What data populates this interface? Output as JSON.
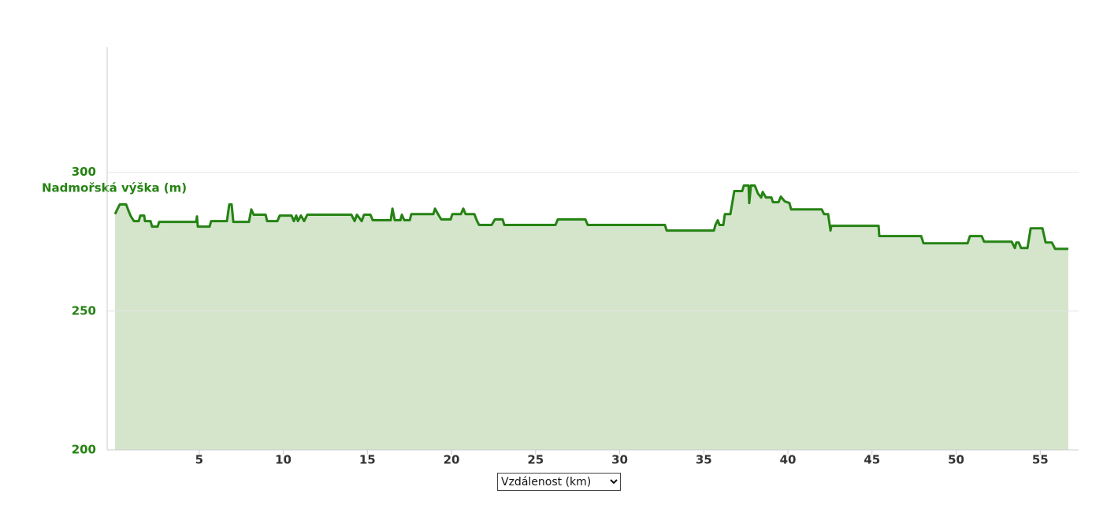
{
  "chart_data": {
    "type": "area",
    "y_label": "Nadmořská výška (m)",
    "x_label": "Vzdálenost (km)",
    "color": "#258313",
    "fill": "#d4e5cc",
    "xlim": [
      -0.47,
      57.28
    ],
    "ylim": [
      200,
      345
    ],
    "xticks": [
      5,
      10,
      15,
      20,
      25,
      30,
      35,
      40,
      45,
      50,
      55
    ],
    "yticks": [
      200,
      250,
      300
    ],
    "grid": true,
    "x": [
      0,
      0.09,
      0.28,
      0.66,
      0.8,
      0.94,
      1.12,
      1.41,
      1.5,
      1.73,
      1.78,
      2.11,
      2.2,
      2.53,
      2.62,
      4.82,
      4.87,
      4.92,
      5.62,
      5.71,
      6.65,
      6.79,
      6.93,
      7.03,
      7.96,
      8.1,
      8.24,
      8.95,
      9.04,
      9.65,
      9.79,
      10.49,
      10.63,
      10.77,
      10.87,
      11.05,
      11.24,
      11.43,
      14.05,
      14.24,
      14.38,
      14.66,
      14.8,
      15.18,
      15.32,
      16.39,
      16.49,
      16.63,
      16.96,
      17.05,
      17.19,
      17.52,
      17.61,
      18.92,
      19.02,
      19.2,
      19.39,
      19.95,
      20.05,
      20.56,
      20.7,
      20.84,
      21.36,
      21.5,
      21.64,
      22.39,
      22.58,
      23.04,
      23.14,
      26.18,
      26.32,
      27.96,
      28.1,
      32.69,
      32.79,
      35.6,
      35.69,
      35.83,
      35.93,
      36.16,
      36.25,
      36.58,
      36.81,
      37.28,
      37.38,
      37.66,
      37.7,
      37.8,
      38.03,
      38.22,
      38.41,
      38.5,
      38.69,
      39.02,
      39.11,
      39.44,
      39.58,
      39.81,
      40.09,
      40.19,
      42.01,
      42.15,
      42.39,
      42.53,
      42.58,
      45.39,
      45.43,
      47.92,
      48.06,
      50.68,
      50.82,
      51.52,
      51.66,
      53.3,
      53.49,
      53.58,
      53.72,
      53.86,
      54.24,
      54.43,
      55.13,
      55.32,
      55.69,
      55.88,
      56.67
    ],
    "values": [
      284.9,
      286.1,
      288.4,
      288.4,
      286.1,
      284.1,
      282.4,
      282.4,
      284.4,
      284.4,
      282.4,
      282.4,
      280.4,
      280.4,
      282.1,
      282.1,
      284.1,
      280.4,
      280.4,
      282.4,
      282.4,
      288.4,
      288.4,
      282.1,
      282.1,
      286.6,
      284.7,
      284.7,
      282.4,
      282.4,
      284.4,
      284.4,
      282.4,
      284.4,
      282.4,
      284.4,
      282.4,
      284.7,
      284.7,
      282.4,
      284.7,
      282.4,
      284.7,
      284.7,
      282.7,
      282.7,
      286.9,
      282.7,
      282.7,
      284.7,
      282.7,
      282.7,
      284.9,
      284.9,
      286.9,
      284.9,
      283.0,
      283.0,
      284.9,
      284.9,
      286.9,
      284.9,
      284.9,
      282.7,
      281.0,
      281.0,
      283.0,
      283.0,
      281.0,
      281.0,
      283.0,
      283.0,
      281.0,
      281.0,
      279.0,
      279.0,
      281.0,
      282.7,
      281.0,
      281.0,
      284.9,
      284.9,
      293.2,
      293.2,
      295.2,
      295.2,
      288.9,
      295.2,
      295.2,
      292.3,
      290.9,
      292.9,
      290.9,
      290.9,
      289.2,
      289.2,
      291.2,
      289.5,
      288.9,
      286.6,
      286.6,
      284.9,
      284.9,
      279.0,
      280.7,
      280.7,
      277.0,
      277.0,
      274.4,
      274.4,
      277.0,
      277.0,
      275.0,
      275.0,
      272.7,
      274.7,
      274.7,
      272.7,
      272.7,
      279.8,
      279.8,
      274.7,
      274.7,
      272.4,
      272.4
    ]
  }
}
